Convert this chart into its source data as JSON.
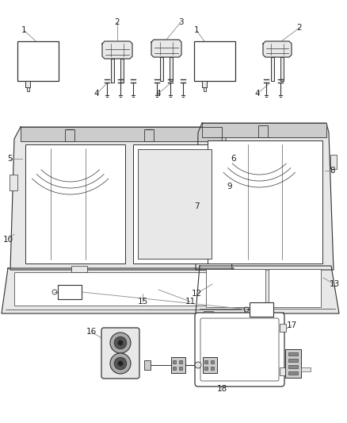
{
  "bg_color": "#ffffff",
  "line_color": "#333333",
  "label_color": "#222222",
  "fig_width": 4.38,
  "fig_height": 5.33,
  "dpi": 100,
  "gray_fill": "#e8e8e8",
  "dark_fill": "#cccccc",
  "white_fill": "#ffffff"
}
